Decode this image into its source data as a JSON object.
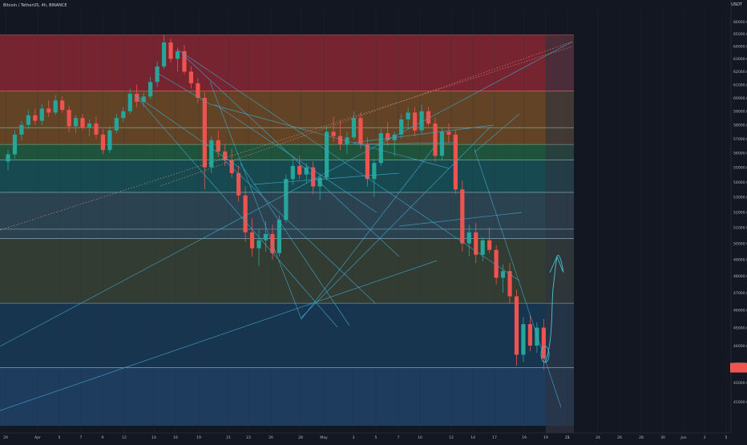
{
  "header": {
    "title": "Bitcoin / TetherUS, 4h, BINANCE"
  },
  "price_axis": {
    "currency": "USDT",
    "scale_note": "log scale"
  },
  "current_price_tag": {
    "color": "#f05350"
  },
  "chart_data": {
    "type": "candlestick",
    "title": "Bitcoin / TetherUS, 4h, BINANCE",
    "y_scale": "log",
    "ylim": [
      39800,
      66200
    ],
    "price_ticks": [
      "41000.00",
      "42000.00",
      "43000.00",
      "44000.00",
      "45000.00",
      "46000.00",
      "47000.00",
      "48000.00",
      "49000.00",
      "50000.00",
      "51000.00",
      "52000.00",
      "53000.00",
      "54000.00",
      "55000.00",
      "56000.00",
      "57000.00",
      "58000.00",
      "59000.00",
      "60000.00",
      "61000.00",
      "62000.00",
      "63000.00",
      "64000.00",
      "65000.00",
      "66000.00"
    ],
    "time_ticks": [
      "29",
      "Apr",
      "5",
      "7",
      "9",
      "12",
      "14",
      "16",
      "19",
      "21",
      "23",
      "26",
      "28",
      "May",
      "3",
      "5",
      "7",
      "10",
      "12",
      "14",
      "17",
      "19",
      "21",
      "24",
      "26",
      "28",
      "30",
      "Jun",
      "3",
      "5"
    ],
    "time_ticks_doubled": [
      "19",
      "21"
    ],
    "zones": [
      {
        "from": 60500,
        "to": 64900,
        "color": "#f23645"
      },
      {
        "from": 56600,
        "to": 60500,
        "color": "#c47a2c"
      },
      {
        "from": 55500,
        "to": 56600,
        "color": "#2e9e5b"
      },
      {
        "from": 53300,
        "to": 55500,
        "color": "#1b8a8a"
      },
      {
        "from": 50300,
        "to": 53300,
        "color": "#4a7a8a"
      },
      {
        "from": 46400,
        "to": 50300,
        "color": "#5a6a48"
      },
      {
        "from": 42800,
        "to": 46400,
        "color": "#1e5a88"
      },
      {
        "from": 39800,
        "to": 42800,
        "color": "#2a6aa8"
      }
    ],
    "levels": [
      64900,
      60500,
      57800,
      56600,
      55500,
      53300,
      50900,
      50300,
      46400,
      42800
    ],
    "projection_zone": {
      "color": "#4a505e"
    },
    "projection_path": {
      "color": "#4ac3d8"
    },
    "candles": [
      [
        0,
        55400,
        56200,
        54800,
        55900
      ],
      [
        1,
        55900,
        57600,
        55600,
        57300
      ],
      [
        2,
        57300,
        58300,
        56900,
        58000
      ],
      [
        3,
        58000,
        59100,
        57700,
        58700
      ],
      [
        4,
        58700,
        59200,
        58000,
        58300
      ],
      [
        5,
        58300,
        59500,
        58000,
        59200
      ],
      [
        6,
        59200,
        59800,
        58600,
        58900
      ],
      [
        7,
        58900,
        60200,
        58700,
        59800
      ],
      [
        8,
        59800,
        60100,
        58900,
        59100
      ],
      [
        9,
        59100,
        59400,
        57500,
        57900
      ],
      [
        10,
        57900,
        58700,
        57400,
        58500
      ],
      [
        11,
        58500,
        58800,
        57600,
        57800
      ],
      [
        12,
        57800,
        58400,
        57200,
        58100
      ],
      [
        13,
        58100,
        58600,
        57000,
        57300
      ],
      [
        14,
        57300,
        57700,
        55900,
        56200
      ],
      [
        15,
        56200,
        57900,
        56000,
        57600
      ],
      [
        16,
        57600,
        58800,
        57400,
        58500
      ],
      [
        17,
        58500,
        59300,
        58200,
        59000
      ],
      [
        18,
        59000,
        60700,
        58800,
        60300
      ],
      [
        19,
        60300,
        61000,
        59300,
        59700
      ],
      [
        20,
        59700,
        60400,
        59300,
        60100
      ],
      [
        21,
        60100,
        61600,
        59900,
        61200
      ],
      [
        22,
        61200,
        62800,
        60800,
        62400
      ],
      [
        23,
        62400,
        64900,
        62200,
        64300
      ],
      [
        24,
        64300,
        64600,
        62700,
        63000
      ],
      [
        25,
        63000,
        63900,
        62000,
        63600
      ],
      [
        26,
        63600,
        64100,
        61800,
        62000
      ],
      [
        27,
        62000,
        62400,
        60700,
        61100
      ],
      [
        28,
        61100,
        61500,
        59600,
        60000
      ],
      [
        29,
        60000,
        60400,
        53500,
        55000
      ],
      [
        30,
        55000,
        57200,
        54600,
        56900
      ],
      [
        31,
        56900,
        57600,
        55700,
        56100
      ],
      [
        32,
        56100,
        56600,
        55100,
        55500
      ],
      [
        33,
        55500,
        56300,
        54300,
        54600
      ],
      [
        34,
        54600,
        55100,
        52700,
        53100
      ],
      [
        35,
        53100,
        53700,
        50100,
        50700
      ],
      [
        36,
        50700,
        51600,
        49200,
        49700
      ],
      [
        37,
        49700,
        50900,
        48600,
        50200
      ],
      [
        38,
        50200,
        51400,
        49500,
        50600
      ],
      [
        39,
        50600,
        51200,
        49000,
        49400
      ],
      [
        40,
        49400,
        51800,
        49200,
        51500
      ],
      [
        41,
        51500,
        54500,
        51300,
        54200
      ],
      [
        42,
        54200,
        55600,
        53800,
        55100
      ],
      [
        43,
        55100,
        55800,
        54200,
        54500
      ],
      [
        44,
        54500,
        55300,
        53900,
        55000
      ],
      [
        45,
        55000,
        55400,
        53200,
        53700
      ],
      [
        46,
        53700,
        54600,
        52800,
        54300
      ],
      [
        47,
        54300,
        57900,
        54100,
        57500
      ],
      [
        48,
        57500,
        58600,
        56800,
        57200
      ],
      [
        49,
        57200,
        58300,
        56200,
        56600
      ],
      [
        50,
        56600,
        57500,
        55900,
        57100
      ],
      [
        51,
        57100,
        59000,
        56900,
        58500
      ],
      [
        52,
        58500,
        58900,
        56300,
        56600
      ],
      [
        53,
        56600,
        57100,
        53700,
        54200
      ],
      [
        54,
        54200,
        55600,
        53000,
        55300
      ],
      [
        55,
        55300,
        57700,
        55100,
        57400
      ],
      [
        56,
        57400,
        58200,
        56500,
        56900
      ],
      [
        57,
        56900,
        57500,
        55800,
        57300
      ],
      [
        58,
        57300,
        58800,
        57000,
        58400
      ],
      [
        59,
        58400,
        59300,
        57700,
        58900
      ],
      [
        60,
        58900,
        59300,
        57200,
        57600
      ],
      [
        61,
        57600,
        59500,
        57300,
        59000
      ],
      [
        62,
        59000,
        59300,
        57900,
        58100
      ],
      [
        63,
        58100,
        58500,
        55400,
        55800
      ],
      [
        64,
        55800,
        57800,
        55500,
        57500
      ],
      [
        65,
        57500,
        58100,
        56700,
        57300
      ],
      [
        66,
        57300,
        57600,
        53200,
        53500
      ],
      [
        67,
        53500,
        54100,
        49500,
        50000
      ],
      [
        68,
        50000,
        51200,
        49200,
        50700
      ],
      [
        69,
        50700,
        51300,
        48800,
        49300
      ],
      [
        70,
        49300,
        50400,
        48900,
        50200
      ],
      [
        71,
        50200,
        51000,
        49400,
        49600
      ],
      [
        72,
        49600,
        49900,
        47500,
        47900
      ],
      [
        73,
        47900,
        48700,
        47000,
        48300
      ],
      [
        74,
        48300,
        48800,
        46400,
        46800
      ],
      [
        75,
        46800,
        47200,
        42900,
        43500
      ],
      [
        76,
        43500,
        45600,
        43100,
        45200
      ],
      [
        77,
        45200,
        45700,
        43700,
        44000
      ],
      [
        78,
        44000,
        45300,
        43600,
        45000
      ],
      [
        79,
        45000,
        45500,
        42700,
        43300
      ]
    ],
    "trendlines_color": "#3fa3c6"
  }
}
